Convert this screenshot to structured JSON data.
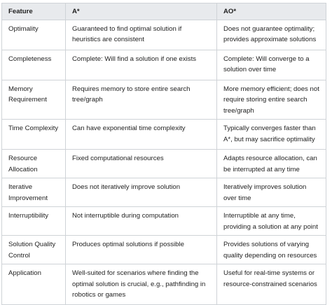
{
  "table": {
    "headers": [
      "Feature",
      "A*",
      "AO*"
    ],
    "rows": [
      [
        "Optimality",
        "Guaranteed to find optimal solution if heuristics are consistent",
        "Does not guarantee optimality; provides approximate solutions"
      ],
      [
        "Completeness",
        "Complete: Will find a solution if one exists",
        "Complete: Will converge to a solution over time"
      ],
      [
        "Memory Requirement",
        "Requires memory to store entire search tree/graph",
        "More memory efficient; does not require storing entire search tree/graph"
      ],
      [
        "Time Complexity",
        "Can have exponential time complexity",
        "Typically converges faster than A*, but may sacrifice optimality"
      ],
      [
        "Resource Allocation",
        "Fixed computational resources",
        "Adapts resource allocation, can be interrupted at any time"
      ],
      [
        "Iterative Improvement",
        "Does not iteratively improve solution",
        "Iteratively improves solution over time"
      ],
      [
        "Interruptibility",
        "Not interruptible during computation",
        "Interruptible at any time, providing a solution at any point"
      ],
      [
        "Solution Quality Control",
        "Produces optimal solutions if possible",
        "Provides solutions of varying quality depending on resources"
      ],
      [
        "Application",
        "Well-suited for scenarios where finding the optimal solution is crucial, e.g., pathfinding in robotics or games",
        "Useful for real-time systems or resource-constrained scenarios"
      ]
    ]
  }
}
